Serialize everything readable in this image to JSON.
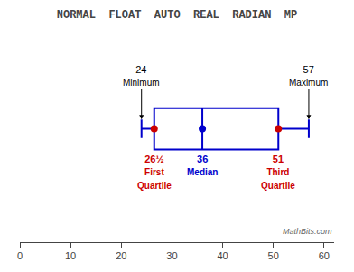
{
  "chart_data": {
    "type": "box",
    "title": "NORMAL  FLOAT  AUTO  REAL  RADIAN  MP",
    "categories": [
      "Minimum",
      "First\nQuartile",
      "Median",
      "Third\nQuartile",
      "Maximum"
    ],
    "values": [
      24,
      26.5,
      36,
      51,
      57
    ],
    "value_labels": [
      "24",
      "26½",
      "36",
      "51",
      "57"
    ],
    "color": "#0000cc",
    "colors": [
      "#000000",
      "#cc0000",
      "#0000cc",
      "#cc0000",
      "#000000"
    ],
    "xlim": [
      0,
      62
    ],
    "xticks": [
      0,
      10,
      20,
      30,
      40,
      50,
      60
    ],
    "tick_labels": "x",
    "grid": false,
    "annotations": [
      {
        "text": "MathBits.com"
      }
    ]
  }
}
